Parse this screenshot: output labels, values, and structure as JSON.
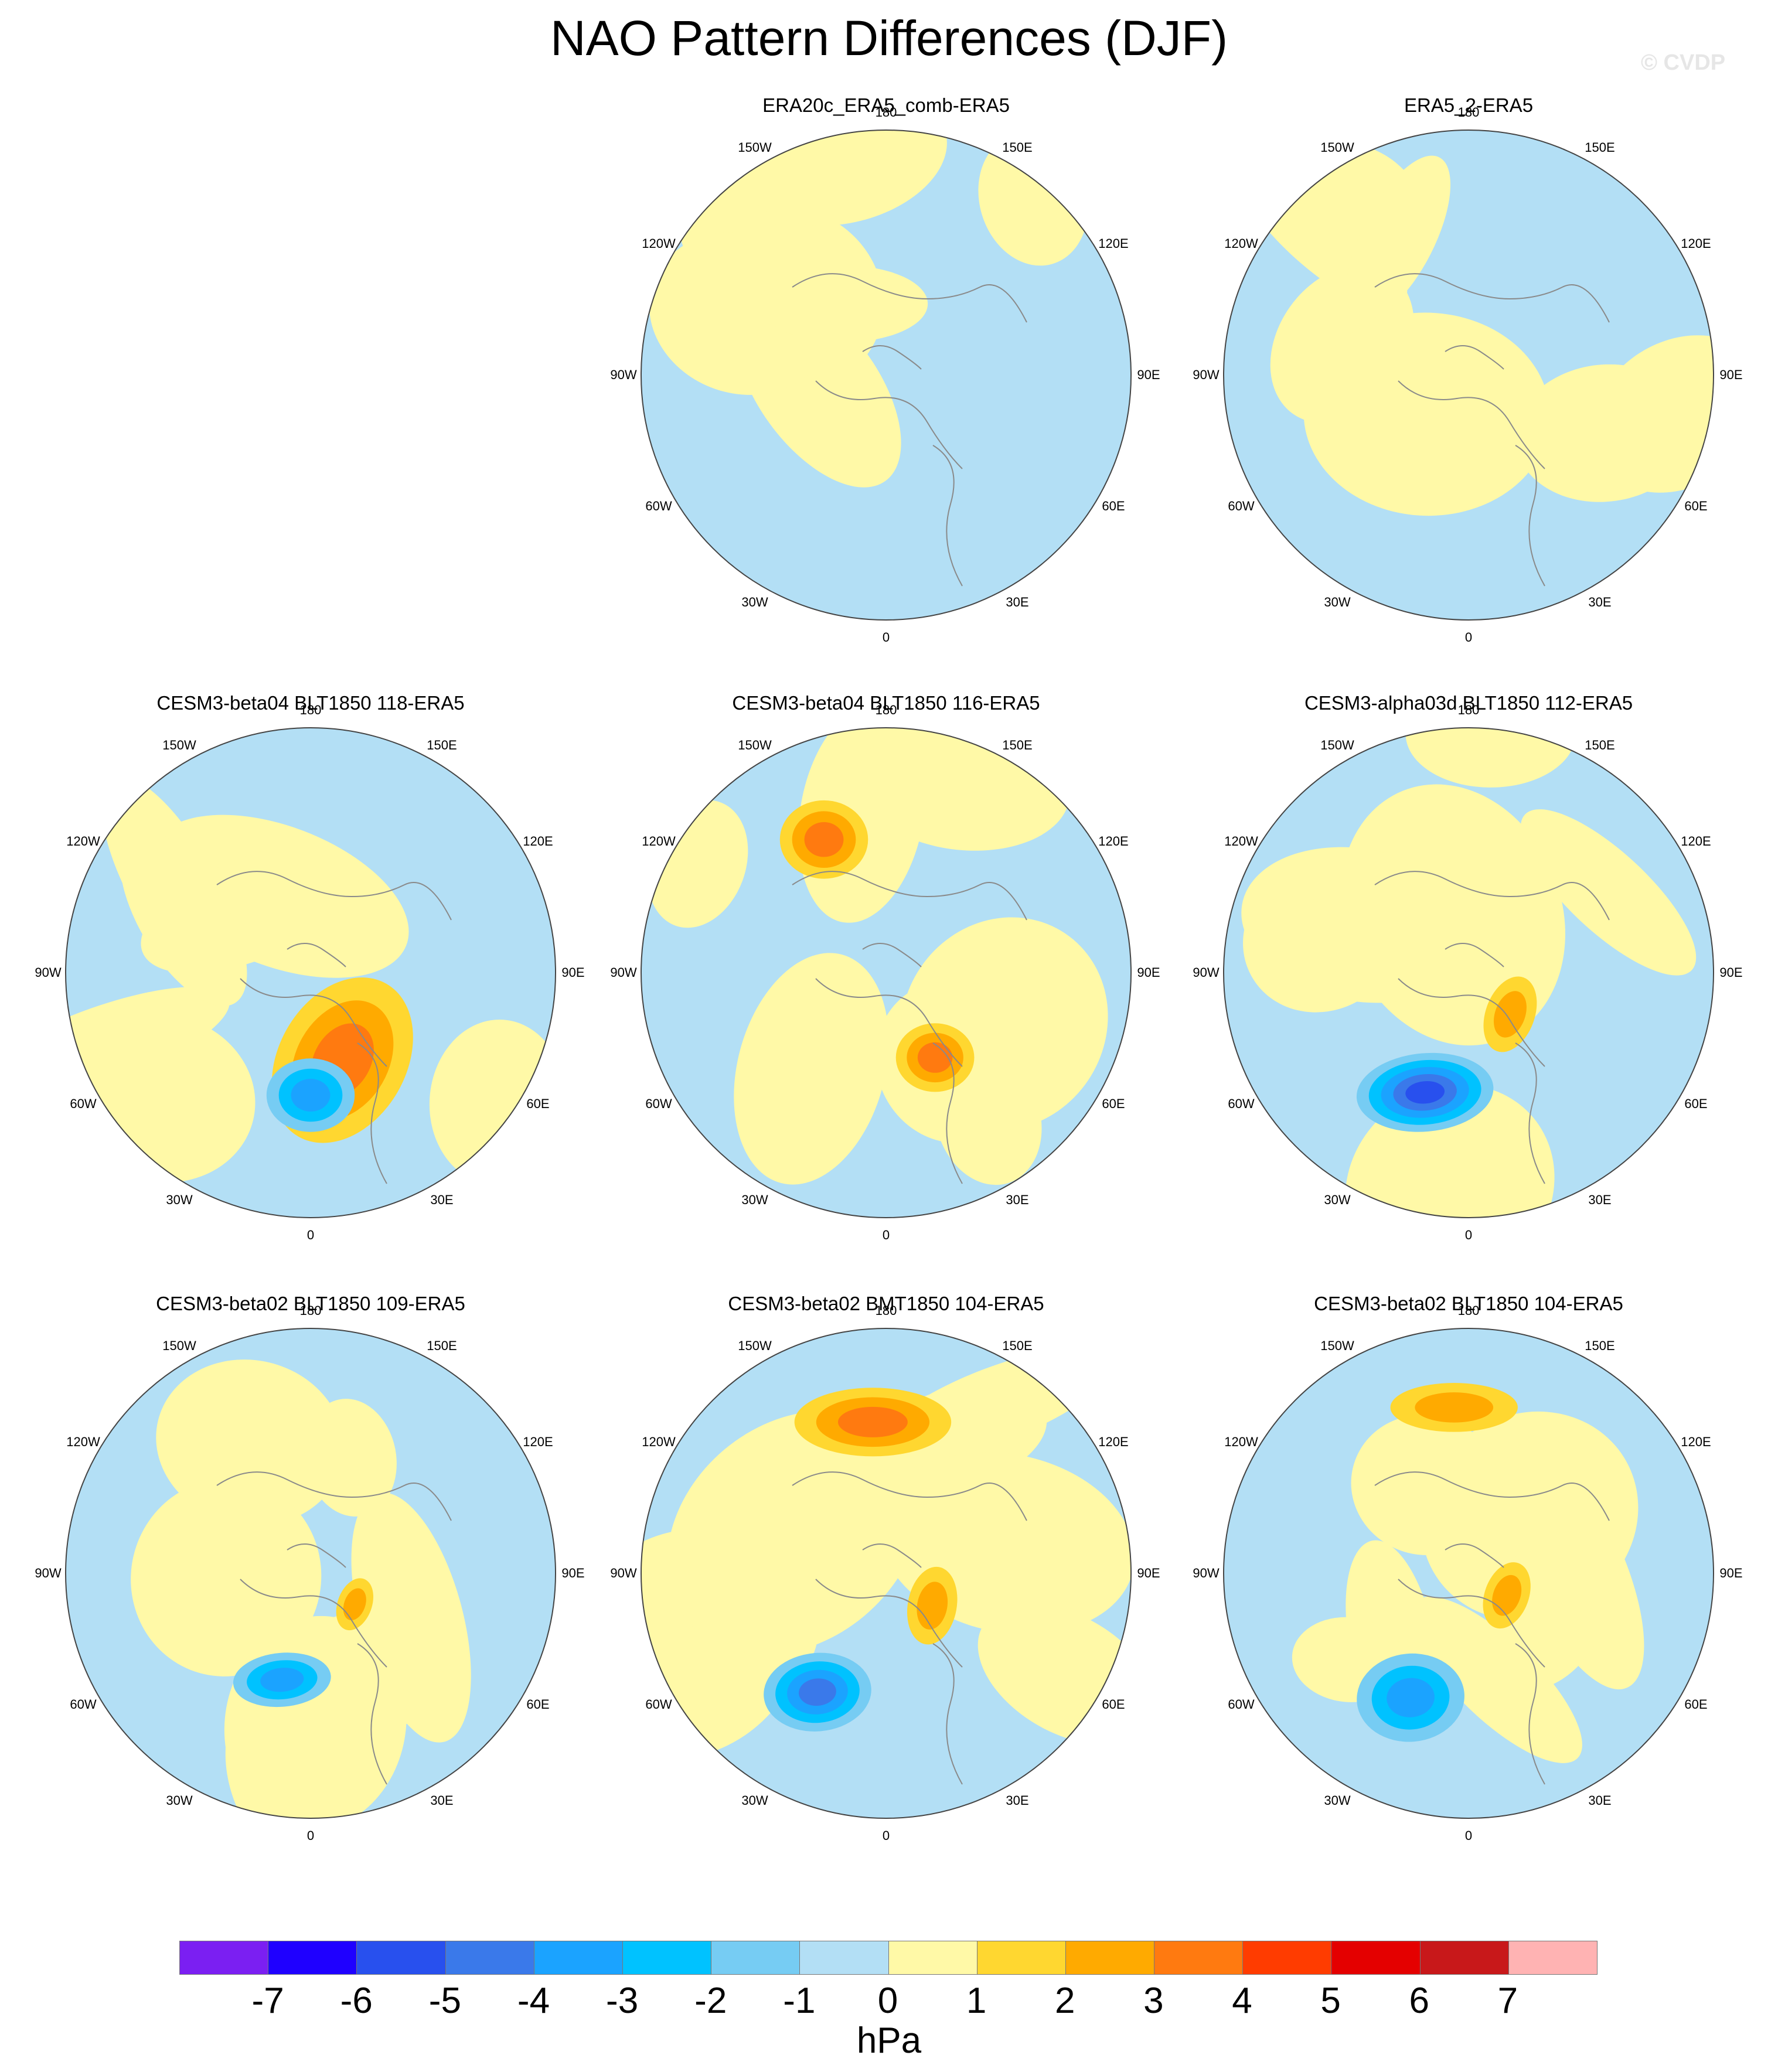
{
  "title": "NAO Pattern Differences (DJF)",
  "watermark": "© CVDP",
  "lon_labels": [
    "180",
    "150E",
    "120E",
    "90E",
    "60E",
    "30E",
    "0",
    "30W",
    "60W",
    "90W",
    "120W",
    "150W"
  ],
  "panels": [
    {
      "title": "ERA20c_ERA5_comb-ERA5",
      "row": 0,
      "col": 1,
      "features": []
    },
    {
      "title": "ERA5_2-ERA5",
      "row": 0,
      "col": 2,
      "features": []
    },
    {
      "title": "CESM3-beta04 BLT1850 118-ERA5",
      "row": 1,
      "col": 0,
      "features": [
        {
          "lon": 20,
          "r": 0.38,
          "rx": 0.26,
          "ry": 0.36,
          "rot": 30,
          "level": 3
        },
        {
          "lon": 0,
          "r": 0.5,
          "rx": 0.18,
          "ry": 0.15,
          "rot": 0,
          "level": -3
        }
      ]
    },
    {
      "title": "CESM3-beta04 BLT1850 116-ERA5",
      "row": 1,
      "col": 1,
      "features": [
        {
          "lon": -155,
          "r": 0.6,
          "rx": 0.18,
          "ry": 0.16,
          "rot": 0,
          "level": 3
        },
        {
          "lon": 30,
          "r": 0.4,
          "rx": 0.16,
          "ry": 0.14,
          "rot": 0,
          "level": 3
        }
      ]
    },
    {
      "title": "CESM3-alpha03d BLT1850 112-ERA5",
      "row": 1,
      "col": 2,
      "features": [
        {
          "lon": -20,
          "r": 0.52,
          "rx": 0.28,
          "ry": 0.16,
          "rot": -5,
          "level": -5
        },
        {
          "lon": 45,
          "r": 0.24,
          "rx": 0.1,
          "ry": 0.16,
          "rot": 20,
          "level": 2
        }
      ]
    },
    {
      "title": "CESM3-beta02 BLT1850 109-ERA5",
      "row": 2,
      "col": 0,
      "features": [
        {
          "lon": -15,
          "r": 0.45,
          "rx": 0.2,
          "ry": 0.11,
          "rot": -5,
          "level": -3
        },
        {
          "lon": 55,
          "r": 0.22,
          "rx": 0.07,
          "ry": 0.11,
          "rot": 20,
          "level": 2
        }
      ]
    },
    {
      "title": "CESM3-beta02 BMT1850 104-ERA5",
      "row": 2,
      "col": 1,
      "features": [
        {
          "lon": -175,
          "r": 0.62,
          "rx": 0.32,
          "ry": 0.14,
          "rot": 0,
          "level": 3
        },
        {
          "lon": -30,
          "r": 0.56,
          "rx": 0.22,
          "ry": 0.16,
          "rot": -5,
          "level": -4
        },
        {
          "lon": 55,
          "r": 0.23,
          "rx": 0.1,
          "ry": 0.16,
          "rot": 10,
          "level": 2
        }
      ]
    },
    {
      "title": "CESM3-beta02 BLT1850 104-ERA5",
      "row": 2,
      "col": 2,
      "features": [
        {
          "lon": -175,
          "r": 0.68,
          "rx": 0.26,
          "ry": 0.1,
          "rot": 0,
          "level": 2
        },
        {
          "lon": -25,
          "r": 0.56,
          "rx": 0.22,
          "ry": 0.18,
          "rot": -5,
          "level": -3
        },
        {
          "lon": 60,
          "r": 0.18,
          "rx": 0.09,
          "ry": 0.14,
          "rot": 20,
          "level": 2
        }
      ]
    }
  ],
  "colorbar": {
    "units": "hPa",
    "labels": [
      "-7",
      "-6",
      "-5",
      "-4",
      "-3",
      "-2",
      "-1",
      "0",
      "1",
      "2",
      "3",
      "4",
      "5",
      "6",
      "7"
    ],
    "colors": [
      "#7b1ff2",
      "#1f00ff",
      "#2850ee",
      "#3a79ea",
      "#1ba3ff",
      "#00c2ff",
      "#76ccf3",
      "#b3dff5",
      "#fff9a7",
      "#ffd730",
      "#ffaa00",
      "#ff7a10",
      "#ff3c00",
      "#e40000",
      "#c8181a",
      "#ffb3b3"
    ]
  }
}
